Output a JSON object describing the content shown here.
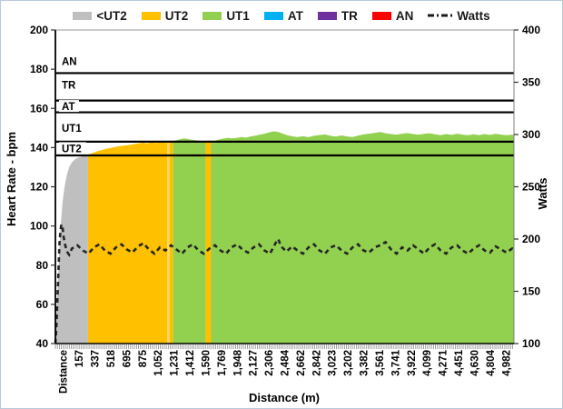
{
  "chart_data": {
    "type": "area",
    "title": "",
    "xlabel": "Distance (m)",
    "ylabel_left": "Heart Rate - bpm",
    "ylabel_right": "Watts",
    "y_left": {
      "min": 40,
      "max": 200,
      "ticks": [
        40,
        60,
        80,
        100,
        120,
        140,
        160,
        180,
        200
      ]
    },
    "y_right": {
      "min": 100,
      "max": 400,
      "ticks": [
        100,
        150,
        200,
        250,
        300,
        350,
        400
      ]
    },
    "x_categories": [
      "Distance",
      "157",
      "337",
      "518",
      "695",
      "875",
      "1,052",
      "1,231",
      "1,412",
      "1,590",
      "1,769",
      "1,948",
      "2,127",
      "2,306",
      "2,484",
      "2,662",
      "2,842",
      "3,023",
      "3,202",
      "3,382",
      "3,561",
      "3,741",
      "3,922",
      "4,099",
      "4,271",
      "4,451",
      "4,630",
      "4,804",
      "4,982"
    ],
    "x_domain_m": [
      0,
      5000
    ],
    "legend": [
      {
        "label": "<UT2",
        "color": "#BFBFBF",
        "icon": "swatch"
      },
      {
        "label": "UT2",
        "color": "#FFC000",
        "icon": "swatch"
      },
      {
        "label": "UT1",
        "color": "#92D050",
        "icon": "swatch"
      },
      {
        "label": "AT",
        "color": "#00B0F0",
        "icon": "swatch"
      },
      {
        "label": "TR",
        "color": "#7030A0",
        "icon": "swatch"
      },
      {
        "label": "AN",
        "color": "#FF0000",
        "icon": "swatch"
      },
      {
        "label": "Watts",
        "color": "#1A1A1A",
        "icon": "dash"
      }
    ],
    "zone_colors": {
      "lt_ut2": "#BFBFBF",
      "ut2": "#FFC000",
      "ut2_light": "#FFD965",
      "ut1": "#92D050",
      "at": "#00B0F0",
      "tr": "#7030A0",
      "an": "#FF0000"
    },
    "zone_lines": [
      {
        "label": "AN",
        "line_bpm": 178,
        "label_bpm": 184
      },
      {
        "label": "TR",
        "line_bpm": 164,
        "label_bpm": 172
      },
      {
        "label": "AT",
        "line_bpm": 158,
        "label_bpm": 161
      },
      {
        "label": "UT1",
        "line_bpm": 143,
        "label_bpm": 150
      },
      {
        "label": "UT2",
        "line_bpm": 136,
        "label_bpm": 139.5
      }
    ],
    "hr_segments": [
      {
        "from": 0,
        "to": 355,
        "zone": "lt_ut2"
      },
      {
        "from": 355,
        "to": 1218,
        "zone": "ut2"
      },
      {
        "from": 1218,
        "to": 1245,
        "zone": "ut2_light"
      },
      {
        "from": 1245,
        "to": 1283,
        "zone": "ut2"
      },
      {
        "from": 1283,
        "to": 1638,
        "zone": "ut1"
      },
      {
        "from": 1638,
        "to": 1698,
        "zone": "ut2"
      },
      {
        "from": 1698,
        "to": 5000,
        "zone": "ut1"
      }
    ],
    "hr_points": [
      [
        0,
        45
      ],
      [
        15,
        58
      ],
      [
        30,
        74
      ],
      [
        45,
        89
      ],
      [
        60,
        102
      ],
      [
        80,
        113
      ],
      [
        100,
        120
      ],
      [
        125,
        126
      ],
      [
        150,
        130
      ],
      [
        180,
        132.5
      ],
      [
        215,
        134
      ],
      [
        250,
        135
      ],
      [
        290,
        135.4
      ],
      [
        330,
        135.9
      ],
      [
        365,
        136.5
      ],
      [
        410,
        137.3
      ],
      [
        460,
        138.2
      ],
      [
        510,
        138.8
      ],
      [
        560,
        139.5
      ],
      [
        610,
        139.9
      ],
      [
        660,
        140.4
      ],
      [
        710,
        140.8
      ],
      [
        760,
        141.1
      ],
      [
        810,
        141.4
      ],
      [
        860,
        141.8
      ],
      [
        910,
        142.1
      ],
      [
        950,
        142.5
      ],
      [
        1000,
        142.1
      ],
      [
        1050,
        142.7
      ],
      [
        1100,
        142.3
      ],
      [
        1150,
        142.6
      ],
      [
        1200,
        142.4
      ],
      [
        1250,
        142.8
      ],
      [
        1290,
        143.3
      ],
      [
        1330,
        143.9
      ],
      [
        1370,
        144.4
      ],
      [
        1410,
        144.7
      ],
      [
        1460,
        144.2
      ],
      [
        1510,
        143.9
      ],
      [
        1560,
        143.5
      ],
      [
        1610,
        143.1
      ],
      [
        1650,
        142.8
      ],
      [
        1690,
        142.9
      ],
      [
        1730,
        143.4
      ],
      [
        1780,
        144.1
      ],
      [
        1830,
        144.6
      ],
      [
        1880,
        145
      ],
      [
        1930,
        144.7
      ],
      [
        1980,
        145
      ],
      [
        2030,
        145.4
      ],
      [
        2080,
        145.1
      ],
      [
        2130,
        145.7
      ],
      [
        2180,
        146.1
      ],
      [
        2230,
        146.6
      ],
      [
        2280,
        147.1
      ],
      [
        2330,
        147.8
      ],
      [
        2380,
        148.3
      ],
      [
        2430,
        147.9
      ],
      [
        2480,
        147.1
      ],
      [
        2530,
        146.3
      ],
      [
        2580,
        145.8
      ],
      [
        2640,
        145.4
      ],
      [
        2700,
        145.8
      ],
      [
        2760,
        145.3
      ],
      [
        2820,
        146
      ],
      [
        2880,
        146.4
      ],
      [
        2940,
        146.7
      ],
      [
        3000,
        146
      ],
      [
        3060,
        145.6
      ],
      [
        3120,
        146.2
      ],
      [
        3180,
        145.7
      ],
      [
        3240,
        145.4
      ],
      [
        3300,
        146.1
      ],
      [
        3360,
        146.7
      ],
      [
        3420,
        147.1
      ],
      [
        3480,
        147.5
      ],
      [
        3540,
        147.9
      ],
      [
        3600,
        147.3
      ],
      [
        3660,
        146.9
      ],
      [
        3720,
        146.6
      ],
      [
        3780,
        147.1
      ],
      [
        3840,
        147.4
      ],
      [
        3900,
        146.9
      ],
      [
        3960,
        146.6
      ],
      [
        4020,
        147
      ],
      [
        4080,
        147.3
      ],
      [
        4140,
        146.8
      ],
      [
        4200,
        146.4
      ],
      [
        4260,
        146.9
      ],
      [
        4320,
        146.5
      ],
      [
        4380,
        147
      ],
      [
        4440,
        146.6
      ],
      [
        4500,
        146.3
      ],
      [
        4560,
        146.8
      ],
      [
        4620,
        146.4
      ],
      [
        4680,
        146.9
      ],
      [
        4740,
        146.5
      ],
      [
        4800,
        147
      ],
      [
        4860,
        146.6
      ],
      [
        4920,
        146.3
      ],
      [
        4980,
        146.6
      ],
      [
        5000,
        146.5
      ]
    ],
    "watts_points": [
      [
        0,
        100
      ],
      [
        12,
        118
      ],
      [
        25,
        148
      ],
      [
        35,
        172
      ],
      [
        45,
        196
      ],
      [
        55,
        208
      ],
      [
        65,
        214
      ],
      [
        78,
        211
      ],
      [
        90,
        202
      ],
      [
        105,
        195
      ],
      [
        125,
        188
      ],
      [
        150,
        185
      ],
      [
        180,
        191
      ],
      [
        240,
        194
      ],
      [
        300,
        189
      ],
      [
        360,
        186
      ],
      [
        420,
        192
      ],
      [
        480,
        195
      ],
      [
        540,
        189
      ],
      [
        600,
        186
      ],
      [
        660,
        192
      ],
      [
        720,
        195
      ],
      [
        780,
        190
      ],
      [
        840,
        187
      ],
      [
        900,
        193
      ],
      [
        960,
        196
      ],
      [
        1020,
        190
      ],
      [
        1080,
        186
      ],
      [
        1140,
        192
      ],
      [
        1200,
        189
      ],
      [
        1260,
        194
      ],
      [
        1320,
        190
      ],
      [
        1380,
        186
      ],
      [
        1440,
        192
      ],
      [
        1500,
        195
      ],
      [
        1560,
        189
      ],
      [
        1620,
        186
      ],
      [
        1680,
        191
      ],
      [
        1740,
        194
      ],
      [
        1800,
        189
      ],
      [
        1860,
        186
      ],
      [
        1920,
        192
      ],
      [
        1980,
        195
      ],
      [
        2040,
        190
      ],
      [
        2100,
        187
      ],
      [
        2160,
        192
      ],
      [
        2220,
        195
      ],
      [
        2280,
        189
      ],
      [
        2340,
        186
      ],
      [
        2400,
        196
      ],
      [
        2430,
        200
      ],
      [
        2460,
        193
      ],
      [
        2520,
        188
      ],
      [
        2580,
        193
      ],
      [
        2640,
        189
      ],
      [
        2700,
        186
      ],
      [
        2760,
        192
      ],
      [
        2820,
        195
      ],
      [
        2880,
        189
      ],
      [
        2940,
        186
      ],
      [
        3000,
        192
      ],
      [
        3060,
        194
      ],
      [
        3120,
        189
      ],
      [
        3180,
        186
      ],
      [
        3240,
        192
      ],
      [
        3300,
        195
      ],
      [
        3360,
        189
      ],
      [
        3420,
        187
      ],
      [
        3480,
        192
      ],
      [
        3540,
        194
      ],
      [
        3600,
        197
      ],
      [
        3660,
        190
      ],
      [
        3720,
        186
      ],
      [
        3780,
        192
      ],
      [
        3840,
        189
      ],
      [
        3900,
        194
      ],
      [
        3960,
        190
      ],
      [
        4020,
        186
      ],
      [
        4080,
        192
      ],
      [
        4140,
        195
      ],
      [
        4200,
        189
      ],
      [
        4260,
        186
      ],
      [
        4320,
        192
      ],
      [
        4380,
        194
      ],
      [
        4440,
        189
      ],
      [
        4500,
        186
      ],
      [
        4560,
        191
      ],
      [
        4620,
        194
      ],
      [
        4680,
        189
      ],
      [
        4740,
        187
      ],
      [
        4800,
        193
      ],
      [
        4860,
        190
      ],
      [
        4920,
        187
      ],
      [
        4980,
        191
      ],
      [
        5000,
        190
      ]
    ]
  }
}
